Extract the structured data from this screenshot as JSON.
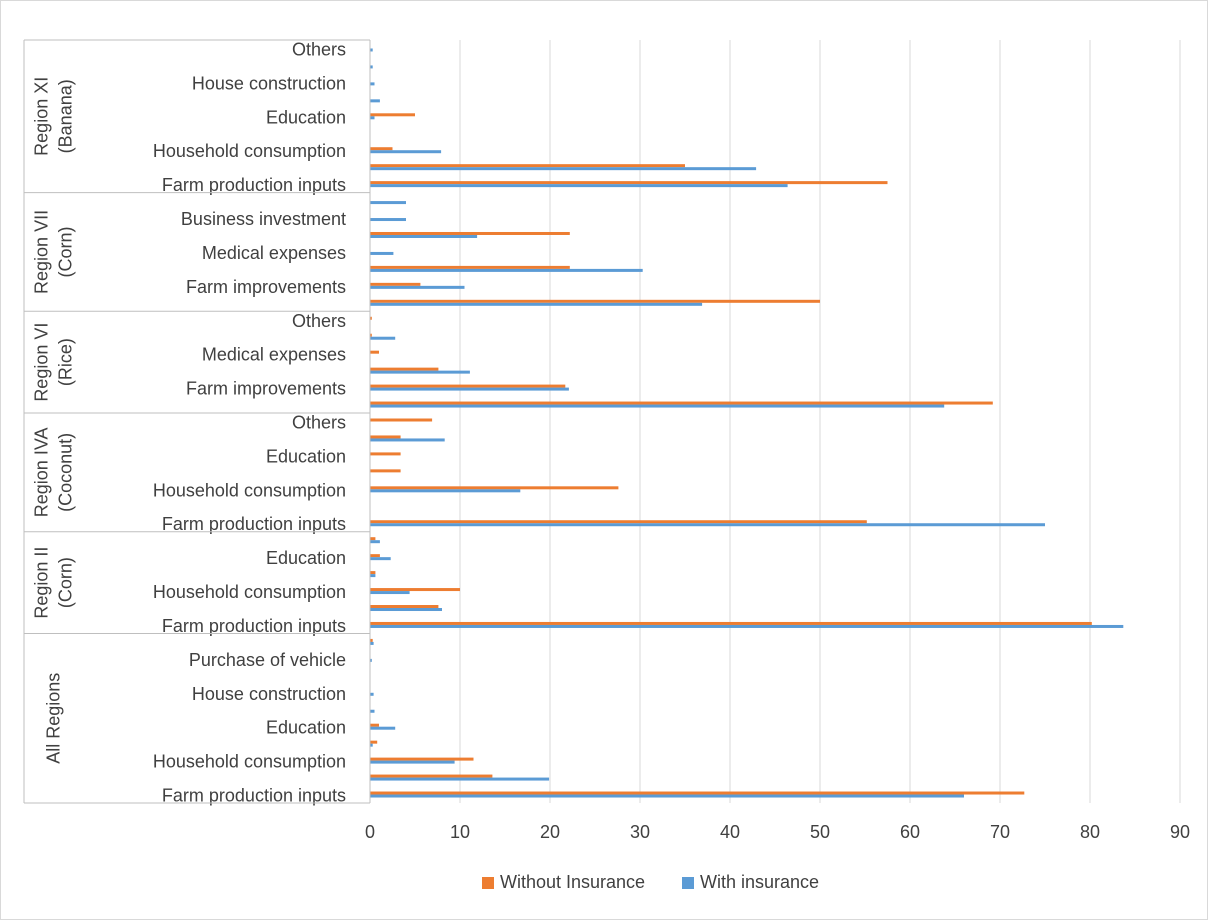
{
  "chart_data": {
    "type": "bar",
    "orientation": "horizontal",
    "xlim": [
      0,
      90
    ],
    "x_ticks": [
      "0",
      "10",
      "20",
      "30",
      "40",
      "50",
      "60",
      "70",
      "80",
      "90"
    ],
    "grid": "vertical",
    "legend_placement": "bottom",
    "series": [
      {
        "name": "Without Insurance",
        "color": "#ED7D31"
      },
      {
        "name": "With insurance",
        "color": "#5B9BD5"
      }
    ],
    "groups": [
      {
        "label_lines": [
          "Region XI",
          "(Banana)"
        ],
        "rows": [
          {
            "label": "Others",
            "values": [
              0,
              0.3
            ]
          },
          {
            "label": "",
            "values": [
              0,
              0.3
            ]
          },
          {
            "label": "House construction",
            "values": [
              0,
              0.5
            ]
          },
          {
            "label": "",
            "values": [
              0,
              1.1
            ]
          },
          {
            "label": "Education",
            "values": [
              5.0,
              0.5
            ]
          },
          {
            "label": "",
            "values": [
              0,
              0
            ]
          },
          {
            "label": "Household consumption",
            "values": [
              2.5,
              7.9
            ]
          },
          {
            "label": "",
            "values": [
              35.0,
              42.9
            ]
          },
          {
            "label": "Farm production inputs",
            "values": [
              57.5,
              46.4
            ]
          }
        ]
      },
      {
        "label_lines": [
          "Region VII",
          "(Corn)"
        ],
        "rows": [
          {
            "label": "",
            "values": [
              0,
              4.0
            ]
          },
          {
            "label": "Business investment",
            "values": [
              0,
              4.0
            ]
          },
          {
            "label": "",
            "values": [
              22.2,
              11.9
            ]
          },
          {
            "label": "Medical expenses",
            "values": [
              0,
              2.6
            ]
          },
          {
            "label": "",
            "values": [
              22.2,
              30.3
            ]
          },
          {
            "label": "Farm improvements",
            "values": [
              5.6,
              10.5
            ]
          },
          {
            "label": "",
            "values": [
              50.0,
              36.9
            ]
          }
        ]
      },
      {
        "label_lines": [
          "Region VI",
          "(Rice)"
        ],
        "rows": [
          {
            "label": "Others",
            "values": [
              0.2,
              0
            ]
          },
          {
            "label": "",
            "values": [
              0.2,
              2.8
            ]
          },
          {
            "label": "Medical expenses",
            "values": [
              1.0,
              0
            ]
          },
          {
            "label": "",
            "values": [
              7.6,
              11.1
            ]
          },
          {
            "label": "Farm improvements",
            "values": [
              21.7,
              22.1
            ]
          },
          {
            "label": "",
            "values": [
              69.2,
              63.8
            ]
          }
        ]
      },
      {
        "label_lines": [
          "Region IVA",
          "(Coconut)"
        ],
        "rows": [
          {
            "label": "Others",
            "values": [
              6.9,
              0
            ]
          },
          {
            "label": "",
            "values": [
              3.4,
              8.3
            ]
          },
          {
            "label": "Education",
            "values": [
              3.4,
              0
            ]
          },
          {
            "label": "",
            "values": [
              3.4,
              0
            ]
          },
          {
            "label": "Household consumption",
            "values": [
              27.6,
              16.7
            ]
          },
          {
            "label": "",
            "values": [
              0,
              0
            ]
          },
          {
            "label": "Farm production inputs",
            "values": [
              55.2,
              75.0
            ]
          }
        ]
      },
      {
        "label_lines": [
          "Region II",
          "(Corn)"
        ],
        "rows": [
          {
            "label": "",
            "values": [
              0.6,
              1.1
            ]
          },
          {
            "label": "Education",
            "values": [
              1.1,
              2.3
            ]
          },
          {
            "label": "",
            "values": [
              0.6,
              0.6
            ]
          },
          {
            "label": "Household consumption",
            "values": [
              10.0,
              4.4
            ]
          },
          {
            "label": "",
            "values": [
              7.6,
              8.0
            ]
          },
          {
            "label": "Farm production inputs",
            "values": [
              80.2,
              83.7
            ]
          }
        ]
      },
      {
        "label_lines": [
          "All Regions"
        ],
        "rows": [
          {
            "label": "",
            "values": [
              0.3,
              0.4
            ]
          },
          {
            "label": "Purchase of vehicle",
            "values": [
              0,
              0.2
            ]
          },
          {
            "label": "",
            "values": [
              0,
              0
            ]
          },
          {
            "label": "House construction",
            "values": [
              0,
              0.4
            ]
          },
          {
            "label": "",
            "values": [
              0,
              0.5
            ]
          },
          {
            "label": "Education",
            "values": [
              1.0,
              2.8
            ]
          },
          {
            "label": "",
            "values": [
              0.8,
              0.3
            ]
          },
          {
            "label": "Household consumption",
            "values": [
              11.5,
              9.4
            ]
          },
          {
            "label": "",
            "values": [
              13.6,
              19.9
            ]
          },
          {
            "label": "Farm production inputs",
            "values": [
              72.7,
              66.0
            ]
          }
        ]
      }
    ]
  }
}
